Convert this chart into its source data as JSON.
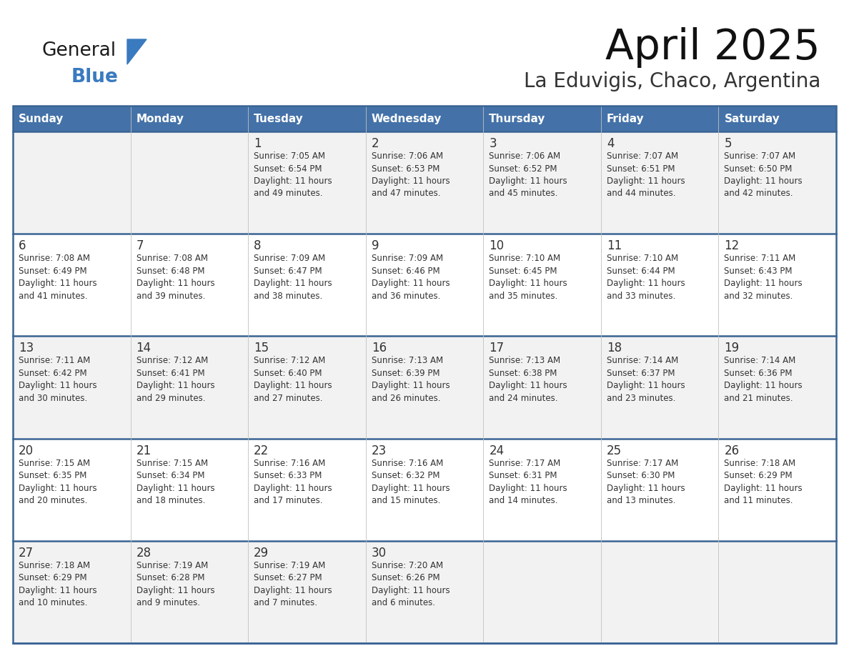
{
  "title": "April 2025",
  "subtitle": "La Eduvigis, Chaco, Argentina",
  "days_of_week": [
    "Sunday",
    "Monday",
    "Tuesday",
    "Wednesday",
    "Thursday",
    "Friday",
    "Saturday"
  ],
  "header_bg": "#4472a8",
  "header_text": "#ffffff",
  "row_bg_light": "#f2f2f2",
  "row_bg_white": "#ffffff",
  "border_color": "#3a6494",
  "cell_border_color": "#c0c0c0",
  "text_color": "#333333",
  "title_color": "#111111",
  "subtitle_color": "#333333",
  "logo_general_color": "#1a1a1a",
  "logo_blue_color": "#3a7abf",
  "logo_triangle_color": "#3a7abf",
  "calendar_data": [
    [
      {
        "day": null,
        "info": null
      },
      {
        "day": null,
        "info": null
      },
      {
        "day": "1",
        "info": "Sunrise: 7:05 AM\nSunset: 6:54 PM\nDaylight: 11 hours\nand 49 minutes."
      },
      {
        "day": "2",
        "info": "Sunrise: 7:06 AM\nSunset: 6:53 PM\nDaylight: 11 hours\nand 47 minutes."
      },
      {
        "day": "3",
        "info": "Sunrise: 7:06 AM\nSunset: 6:52 PM\nDaylight: 11 hours\nand 45 minutes."
      },
      {
        "day": "4",
        "info": "Sunrise: 7:07 AM\nSunset: 6:51 PM\nDaylight: 11 hours\nand 44 minutes."
      },
      {
        "day": "5",
        "info": "Sunrise: 7:07 AM\nSunset: 6:50 PM\nDaylight: 11 hours\nand 42 minutes."
      }
    ],
    [
      {
        "day": "6",
        "info": "Sunrise: 7:08 AM\nSunset: 6:49 PM\nDaylight: 11 hours\nand 41 minutes."
      },
      {
        "day": "7",
        "info": "Sunrise: 7:08 AM\nSunset: 6:48 PM\nDaylight: 11 hours\nand 39 minutes."
      },
      {
        "day": "8",
        "info": "Sunrise: 7:09 AM\nSunset: 6:47 PM\nDaylight: 11 hours\nand 38 minutes."
      },
      {
        "day": "9",
        "info": "Sunrise: 7:09 AM\nSunset: 6:46 PM\nDaylight: 11 hours\nand 36 minutes."
      },
      {
        "day": "10",
        "info": "Sunrise: 7:10 AM\nSunset: 6:45 PM\nDaylight: 11 hours\nand 35 minutes."
      },
      {
        "day": "11",
        "info": "Sunrise: 7:10 AM\nSunset: 6:44 PM\nDaylight: 11 hours\nand 33 minutes."
      },
      {
        "day": "12",
        "info": "Sunrise: 7:11 AM\nSunset: 6:43 PM\nDaylight: 11 hours\nand 32 minutes."
      }
    ],
    [
      {
        "day": "13",
        "info": "Sunrise: 7:11 AM\nSunset: 6:42 PM\nDaylight: 11 hours\nand 30 minutes."
      },
      {
        "day": "14",
        "info": "Sunrise: 7:12 AM\nSunset: 6:41 PM\nDaylight: 11 hours\nand 29 minutes."
      },
      {
        "day": "15",
        "info": "Sunrise: 7:12 AM\nSunset: 6:40 PM\nDaylight: 11 hours\nand 27 minutes."
      },
      {
        "day": "16",
        "info": "Sunrise: 7:13 AM\nSunset: 6:39 PM\nDaylight: 11 hours\nand 26 minutes."
      },
      {
        "day": "17",
        "info": "Sunrise: 7:13 AM\nSunset: 6:38 PM\nDaylight: 11 hours\nand 24 minutes."
      },
      {
        "day": "18",
        "info": "Sunrise: 7:14 AM\nSunset: 6:37 PM\nDaylight: 11 hours\nand 23 minutes."
      },
      {
        "day": "19",
        "info": "Sunrise: 7:14 AM\nSunset: 6:36 PM\nDaylight: 11 hours\nand 21 minutes."
      }
    ],
    [
      {
        "day": "20",
        "info": "Sunrise: 7:15 AM\nSunset: 6:35 PM\nDaylight: 11 hours\nand 20 minutes."
      },
      {
        "day": "21",
        "info": "Sunrise: 7:15 AM\nSunset: 6:34 PM\nDaylight: 11 hours\nand 18 minutes."
      },
      {
        "day": "22",
        "info": "Sunrise: 7:16 AM\nSunset: 6:33 PM\nDaylight: 11 hours\nand 17 minutes."
      },
      {
        "day": "23",
        "info": "Sunrise: 7:16 AM\nSunset: 6:32 PM\nDaylight: 11 hours\nand 15 minutes."
      },
      {
        "day": "24",
        "info": "Sunrise: 7:17 AM\nSunset: 6:31 PM\nDaylight: 11 hours\nand 14 minutes."
      },
      {
        "day": "25",
        "info": "Sunrise: 7:17 AM\nSunset: 6:30 PM\nDaylight: 11 hours\nand 13 minutes."
      },
      {
        "day": "26",
        "info": "Sunrise: 7:18 AM\nSunset: 6:29 PM\nDaylight: 11 hours\nand 11 minutes."
      }
    ],
    [
      {
        "day": "27",
        "info": "Sunrise: 7:18 AM\nSunset: 6:29 PM\nDaylight: 11 hours\nand 10 minutes."
      },
      {
        "day": "28",
        "info": "Sunrise: 7:19 AM\nSunset: 6:28 PM\nDaylight: 11 hours\nand 9 minutes."
      },
      {
        "day": "29",
        "info": "Sunrise: 7:19 AM\nSunset: 6:27 PM\nDaylight: 11 hours\nand 7 minutes."
      },
      {
        "day": "30",
        "info": "Sunrise: 7:20 AM\nSunset: 6:26 PM\nDaylight: 11 hours\nand 6 minutes."
      },
      {
        "day": null,
        "info": null
      },
      {
        "day": null,
        "info": null
      },
      {
        "day": null,
        "info": null
      }
    ]
  ]
}
